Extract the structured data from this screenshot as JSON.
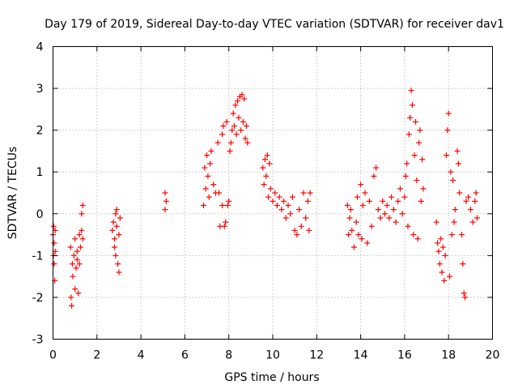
{
  "chart_data": {
    "type": "scatter",
    "title": "Day 179 of 2019, Sidereal Day-to-day VTEC variation (SDTVAR) for receiver dav1",
    "xlabel": "GPS time / hours",
    "ylabel": "SDTVAR / TECUs",
    "xlim": [
      0,
      20
    ],
    "ylim": [
      -3,
      4
    ],
    "xticks": [
      0,
      2,
      4,
      6,
      8,
      10,
      12,
      14,
      16,
      18,
      20
    ],
    "yticks": [
      -3,
      -2,
      -1,
      0,
      1,
      2,
      3,
      4
    ],
    "xtick_labels": [
      "0",
      "2",
      "4",
      "6",
      "8",
      "10",
      "12",
      "14",
      "16",
      "18",
      "20"
    ],
    "ytick_labels": [
      "-3",
      "-2",
      "-1",
      "0",
      "1",
      "2",
      "3",
      "4"
    ],
    "grid": true,
    "marker": "+",
    "color": "#ff0000",
    "series": [
      {
        "name": "dav1",
        "points": [
          [
            0.0,
            -0.5
          ],
          [
            0.05,
            -0.7
          ],
          [
            0.05,
            -1.2
          ],
          [
            0.08,
            -1.6
          ],
          [
            0.02,
            -1.0
          ],
          [
            0.1,
            -0.4
          ],
          [
            0.1,
            -0.9
          ],
          [
            0.03,
            -0.3
          ],
          [
            0.8,
            -0.8
          ],
          [
            0.82,
            -2.0
          ],
          [
            0.85,
            -2.2
          ],
          [
            0.88,
            -1.2
          ],
          [
            0.9,
            -1.5
          ],
          [
            0.95,
            -1.0
          ],
          [
            1.0,
            -1.8
          ],
          [
            1.0,
            -0.6
          ],
          [
            1.05,
            -1.3
          ],
          [
            1.1,
            -1.1
          ],
          [
            1.1,
            -0.9
          ],
          [
            1.15,
            -1.9
          ],
          [
            1.2,
            -0.5
          ],
          [
            1.2,
            -1.2
          ],
          [
            1.25,
            -0.8
          ],
          [
            1.3,
            0.0
          ],
          [
            1.3,
            -0.4
          ],
          [
            1.35,
            0.2
          ],
          [
            1.35,
            -0.6
          ],
          [
            2.7,
            -0.4
          ],
          [
            2.75,
            -0.2
          ],
          [
            2.8,
            -0.6
          ],
          [
            2.8,
            -0.8
          ],
          [
            2.85,
            0.0
          ],
          [
            2.85,
            -1.0
          ],
          [
            2.9,
            -0.3
          ],
          [
            2.9,
            0.1
          ],
          [
            2.95,
            -1.2
          ],
          [
            3.0,
            -1.4
          ],
          [
            3.0,
            -0.5
          ],
          [
            3.05,
            -0.1
          ],
          [
            5.1,
            0.5
          ],
          [
            5.1,
            0.1
          ],
          [
            5.15,
            0.3
          ],
          [
            6.85,
            0.2
          ],
          [
            6.9,
            1.1
          ],
          [
            6.95,
            0.6
          ],
          [
            7.0,
            1.4
          ],
          [
            7.05,
            0.9
          ],
          [
            7.1,
            0.4
          ],
          [
            7.15,
            1.2
          ],
          [
            7.2,
            1.5
          ],
          [
            7.3,
            0.7
          ],
          [
            7.4,
            0.5
          ],
          [
            7.5,
            1.7
          ],
          [
            7.55,
            0.5
          ],
          [
            7.6,
            -0.3
          ],
          [
            7.7,
            0.2
          ],
          [
            7.7,
            1.9
          ],
          [
            7.75,
            2.1
          ],
          [
            7.8,
            -0.3
          ],
          [
            7.85,
            -0.2
          ],
          [
            7.9,
            2.2
          ],
          [
            7.95,
            0.2
          ],
          [
            8.0,
            0.3
          ],
          [
            8.05,
            1.5
          ],
          [
            8.1,
            1.7
          ],
          [
            8.15,
            2.0
          ],
          [
            8.2,
            2.4
          ],
          [
            8.25,
            2.1
          ],
          [
            8.3,
            2.6
          ],
          [
            8.35,
            1.9
          ],
          [
            8.4,
            2.7
          ],
          [
            8.45,
            2.3
          ],
          [
            8.5,
            2.8
          ],
          [
            8.55,
            2.0
          ],
          [
            8.6,
            2.85
          ],
          [
            8.65,
            2.2
          ],
          [
            8.7,
            2.75
          ],
          [
            8.75,
            1.8
          ],
          [
            8.8,
            2.1
          ],
          [
            8.85,
            1.7
          ],
          [
            9.55,
            1.1
          ],
          [
            9.6,
            0.7
          ],
          [
            9.65,
            1.3
          ],
          [
            9.7,
            0.9
          ],
          [
            9.75,
            1.4
          ],
          [
            9.8,
            0.4
          ],
          [
            9.85,
            1.2
          ],
          [
            9.9,
            0.6
          ],
          [
            10.0,
            0.3
          ],
          [
            10.1,
            0.5
          ],
          [
            10.2,
            0.2
          ],
          [
            10.3,
            0.4
          ],
          [
            10.4,
            0.1
          ],
          [
            10.5,
            0.3
          ],
          [
            10.6,
            -0.1
          ],
          [
            10.7,
            0.2
          ],
          [
            10.8,
            0.0
          ],
          [
            10.9,
            0.4
          ],
          [
            11.0,
            -0.4
          ],
          [
            11.1,
            -0.5
          ],
          [
            11.2,
            0.1
          ],
          [
            11.3,
            -0.3
          ],
          [
            11.4,
            0.5
          ],
          [
            11.5,
            -0.1
          ],
          [
            11.6,
            0.3
          ],
          [
            11.65,
            -0.4
          ],
          [
            11.7,
            0.5
          ],
          [
            13.4,
            0.2
          ],
          [
            13.45,
            -0.5
          ],
          [
            13.5,
            -0.1
          ],
          [
            13.55,
            0.1
          ],
          [
            13.6,
            -0.4
          ],
          [
            13.7,
            -0.8
          ],
          [
            13.8,
            -0.2
          ],
          [
            13.85,
            0.4
          ],
          [
            13.9,
            -0.5
          ],
          [
            14.0,
            0.7
          ],
          [
            14.05,
            -0.6
          ],
          [
            14.1,
            0.2
          ],
          [
            14.2,
            0.5
          ],
          [
            14.3,
            -0.7
          ],
          [
            14.4,
            0.3
          ],
          [
            14.5,
            -0.3
          ],
          [
            14.6,
            0.9
          ],
          [
            14.7,
            1.1
          ],
          [
            14.8,
            0.1
          ],
          [
            14.9,
            -0.1
          ],
          [
            15.0,
            0.3
          ],
          [
            15.1,
            0.0
          ],
          [
            15.2,
            0.2
          ],
          [
            15.3,
            -0.1
          ],
          [
            15.4,
            0.4
          ],
          [
            15.5,
            0.1
          ],
          [
            15.6,
            -0.2
          ],
          [
            15.7,
            0.3
          ],
          [
            15.8,
            0.6
          ],
          [
            15.9,
            0.0
          ],
          [
            16.0,
            0.4
          ],
          [
            16.05,
            0.9
          ],
          [
            16.1,
            1.2
          ],
          [
            16.15,
            -0.3
          ],
          [
            16.2,
            1.9
          ],
          [
            16.25,
            2.3
          ],
          [
            16.3,
            2.95
          ],
          [
            16.35,
            2.6
          ],
          [
            16.4,
            -0.5
          ],
          [
            16.45,
            1.4
          ],
          [
            16.5,
            2.2
          ],
          [
            16.55,
            0.8
          ],
          [
            16.6,
            -0.6
          ],
          [
            16.65,
            1.7
          ],
          [
            16.7,
            2.0
          ],
          [
            16.75,
            0.3
          ],
          [
            16.8,
            1.3
          ],
          [
            16.85,
            0.6
          ],
          [
            17.45,
            -0.2
          ],
          [
            17.5,
            -0.7
          ],
          [
            17.55,
            -0.9
          ],
          [
            17.6,
            -1.2
          ],
          [
            17.65,
            -0.6
          ],
          [
            17.7,
            -1.4
          ],
          [
            17.75,
            -0.8
          ],
          [
            17.8,
            -1.6
          ],
          [
            17.85,
            -1.0
          ],
          [
            17.9,
            1.4
          ],
          [
            17.95,
            2.0
          ],
          [
            18.0,
            2.4
          ],
          [
            18.05,
            -1.5
          ],
          [
            18.1,
            1.0
          ],
          [
            18.15,
            -0.5
          ],
          [
            18.2,
            0.8
          ],
          [
            18.25,
            -0.2
          ],
          [
            18.3,
            0.1
          ],
          [
            18.4,
            1.5
          ],
          [
            18.45,
            1.2
          ],
          [
            18.5,
            0.5
          ],
          [
            18.6,
            -0.5
          ],
          [
            18.65,
            -1.2
          ],
          [
            18.7,
            -1.9
          ],
          [
            18.75,
            -2.0
          ],
          [
            18.8,
            0.3
          ],
          [
            18.9,
            0.4
          ],
          [
            19.0,
            0.1
          ],
          [
            19.1,
            -0.2
          ],
          [
            19.2,
            0.3
          ],
          [
            19.25,
            0.5
          ],
          [
            19.3,
            -0.1
          ]
        ]
      }
    ]
  }
}
